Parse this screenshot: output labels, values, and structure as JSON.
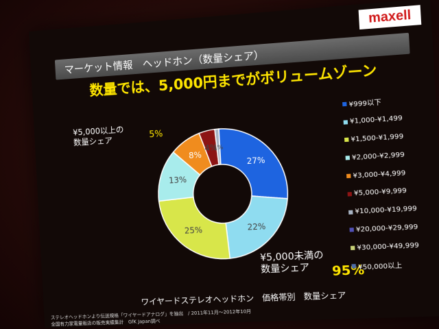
{
  "logo": "maxell",
  "header": {
    "title": "マーケット情報　ヘッドホン（数量シェア）"
  },
  "headline": "数量では、5,000円までがボリュームゾーン",
  "callouts": {
    "above_label_1": "¥5,000以上の",
    "above_label_2": "数量シェア",
    "above_pct": "5%",
    "below_label_1": "¥5,000未満の",
    "below_label_2": "数量シェア",
    "below_pct": "95%"
  },
  "caption": "ワイヤードステレオヘッドホン　価格帯別　数量シェア",
  "notes": {
    "line1": "ステレオヘッドホンより伝送規格「ワイヤードアナログ」を抽出　/ 2011年11月～2012年10月",
    "line2": "全国有力家電量販店の販売実績集計　GfK Japan調べ"
  },
  "chart_data": {
    "type": "pie",
    "title": "",
    "categories": [
      "¥999以下",
      "¥1,000-¥1,499",
      "¥1,500-¥1,999",
      "¥2,000-¥2,999",
      "¥3,000-¥4,999",
      "¥5,000-¥9,999",
      "¥10,000-¥19,999",
      "¥20,000-¥29,999",
      "¥30,000-¥49,999",
      "¥50,000以上"
    ],
    "values": [
      27,
      22,
      25,
      13,
      8,
      4,
      1,
      0,
      0,
      0
    ],
    "labels": [
      "27%",
      "22%",
      "25%",
      "13%",
      "8%",
      "4%",
      "1%",
      "",
      "",
      ""
    ],
    "colors": [
      "#1e64e0",
      "#8fdcf0",
      "#d8e64a",
      "#a8ecec",
      "#f08c1e",
      "#8c1414",
      "#a8b4c4",
      "#5050b4",
      "#c8d278",
      "#4c6ca8"
    ],
    "legend_position": "right",
    "donut": true
  }
}
